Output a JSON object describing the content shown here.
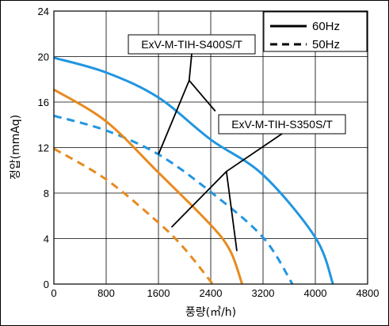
{
  "chart_data": {
    "type": "line",
    "xlabel": "풍량(㎥/h)",
    "ylabel": "정압(mmAq)",
    "xlim": [
      0,
      4800
    ],
    "ylim": [
      0,
      24
    ],
    "x_ticks": [
      0,
      800,
      1600,
      2400,
      3200,
      4000,
      4800
    ],
    "x_tick_labels": [
      "0",
      "800",
      "1600",
      "2400",
      "3200",
      "4000",
      "4800"
    ],
    "y_ticks": [
      0,
      4,
      8,
      12,
      16,
      20,
      24
    ],
    "y_tick_labels": [
      "0",
      "4",
      "8",
      "12",
      "16",
      "20",
      "24"
    ],
    "grid": true,
    "legend": {
      "position": "top-right",
      "entries": [
        {
          "label": "60Hz",
          "style": "solid"
        },
        {
          "label": "50Hz",
          "style": "dashed"
        }
      ]
    },
    "colors": {
      "blue": "#2196e0",
      "orange": "#e88a1e"
    },
    "series": [
      {
        "model": "ExV-M-TIH-S400S/T",
        "freq": "60Hz",
        "style": "solid",
        "color": "#2196e0",
        "points": [
          [
            0,
            19.9
          ],
          [
            800,
            18.6
          ],
          [
            1600,
            16.4
          ],
          [
            2400,
            12.7
          ],
          [
            3200,
            9.6
          ],
          [
            4000,
            4.1
          ],
          [
            4270,
            0
          ]
        ]
      },
      {
        "model": "ExV-M-TIH-S400S/T",
        "freq": "50Hz",
        "style": "dashed",
        "color": "#2196e0",
        "points": [
          [
            0,
            14.8
          ],
          [
            800,
            13.5
          ],
          [
            1600,
            11.4
          ],
          [
            2400,
            8.1
          ],
          [
            3200,
            4.1
          ],
          [
            3650,
            0
          ]
        ]
      },
      {
        "model": "ExV-M-TIH-S350S/T",
        "freq": "60Hz",
        "style": "solid",
        "color": "#e88a1e",
        "points": [
          [
            0,
            17.1
          ],
          [
            800,
            14.3
          ],
          [
            1600,
            9.8
          ],
          [
            2400,
            5.2
          ],
          [
            2700,
            2.9
          ],
          [
            2880,
            0
          ]
        ]
      },
      {
        "model": "ExV-M-TIH-S350S/T",
        "freq": "50Hz",
        "style": "dashed",
        "color": "#e88a1e",
        "points": [
          [
            0,
            11.9
          ],
          [
            800,
            9.2
          ],
          [
            1600,
            5.4
          ],
          [
            2000,
            3.1
          ],
          [
            2430,
            0
          ]
        ]
      }
    ],
    "callouts": [
      {
        "label": "ExV-M-TIH-S400S/T",
        "apex": [
          2070,
          17.9
        ],
        "targets": [
          [
            1600,
            11.4
          ],
          [
            2470,
            15.2
          ]
        ]
      },
      {
        "label": "ExV-M-TIH-S350S/T",
        "apex": [
          2640,
          9.9
        ],
        "targets": [
          [
            1800,
            5.0
          ],
          [
            2800,
            2.9
          ]
        ]
      }
    ]
  }
}
